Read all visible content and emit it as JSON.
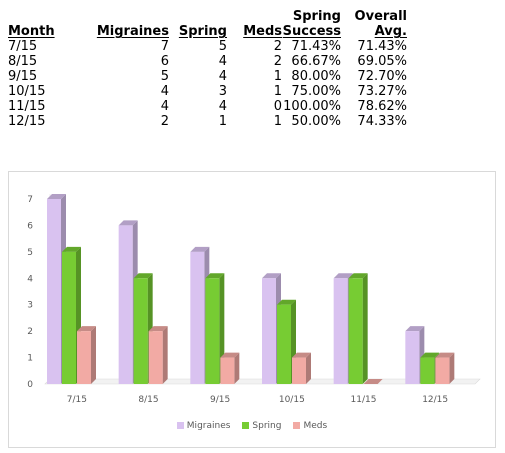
{
  "table": {
    "headers": {
      "month": "Month",
      "migraines": "Migraines",
      "spring": "Spring",
      "meds": "Meds",
      "spring_success_line1": "Spring",
      "spring_success_line2": "Success",
      "overall_line1": "Overall",
      "overall_line2": "Avg."
    },
    "rows": [
      {
        "month": "7/15",
        "migraines": "7",
        "spring": "5",
        "meds": "2",
        "spring_success": "71.43%",
        "overall_avg": "71.43%"
      },
      {
        "month": "8/15",
        "migraines": "6",
        "spring": "4",
        "meds": "2",
        "spring_success": "66.67%",
        "overall_avg": "69.05%"
      },
      {
        "month": "9/15",
        "migraines": "5",
        "spring": "4",
        "meds": "1",
        "spring_success": "80.00%",
        "overall_avg": "72.70%"
      },
      {
        "month": "10/15",
        "migraines": "4",
        "spring": "3",
        "meds": "1",
        "spring_success": "75.00%",
        "overall_avg": "73.27%"
      },
      {
        "month": "11/15",
        "migraines": "4",
        "spring": "4",
        "meds": "0",
        "spring_success": "100.00%",
        "overall_avg": "78.62%"
      },
      {
        "month": "12/15",
        "migraines": "2",
        "spring": "1",
        "meds": "1",
        "spring_success": "50.00%",
        "overall_avg": "74.33%"
      }
    ]
  },
  "chart_data": {
    "type": "bar",
    "categories": [
      "7/15",
      "8/15",
      "9/15",
      "10/15",
      "11/15",
      "12/15"
    ],
    "series": [
      {
        "name": "Migraines",
        "values": [
          7,
          6,
          5,
          4,
          4,
          2
        ],
        "color": "#d9c2f0"
      },
      {
        "name": "Spring",
        "values": [
          5,
          4,
          4,
          3,
          4,
          1
        ],
        "color": "#77cc33"
      },
      {
        "name": "Meds",
        "values": [
          2,
          2,
          1,
          1,
          0,
          1
        ],
        "color": "#f2aaa4"
      }
    ],
    "ylim": [
      0,
      7
    ],
    "yticks": [
      "0",
      "1",
      "2",
      "3",
      "4",
      "5",
      "6",
      "7"
    ],
    "grid": false,
    "style": "3d-column",
    "legend_position": "bottom"
  }
}
